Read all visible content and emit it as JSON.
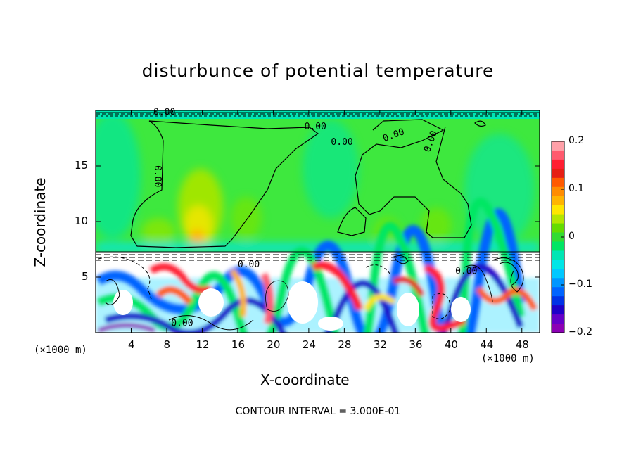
{
  "title": "disturbunce of potential temperature",
  "footer": "CONTOUR INTERVAL = 3.000E-01",
  "chart_data": {
    "type": "heatmap",
    "title": "disturbunce of potential temperature",
    "xlabel": "X-coordinate",
    "ylabel": "Z-coordinate",
    "x_unit": "(×1000 m)",
    "xlim": [
      0,
      50
    ],
    "ylim": [
      0,
      20
    ],
    "x_ticks": [
      4,
      8,
      12,
      16,
      20,
      24,
      28,
      32,
      36,
      40,
      44,
      48
    ],
    "y_ticks": [
      5,
      10,
      15
    ],
    "colorbar": {
      "range": [
        -0.2,
        0.2
      ],
      "tick_labels": [
        "0.2",
        "0.1",
        "0",
        "−0.1",
        "−0.2"
      ],
      "tick_values": [
        0.2,
        0.1,
        0,
        -0.1,
        -0.2
      ],
      "colors": [
        "#ffa0a8",
        "#ff5a6e",
        "#ff1e32",
        "#e61e14",
        "#ff5a00",
        "#ff8c00",
        "#ffb400",
        "#ffe600",
        "#b4e600",
        "#64dc00",
        "#32dc32",
        "#00e664",
        "#00e6b4",
        "#00e6e6",
        "#00c8ff",
        "#0096ff",
        "#0064ff",
        "#0032e6",
        "#1e00c8",
        "#6400c8",
        "#8c00b4"
      ]
    },
    "contour_labels": [
      "0.00",
      "0.00",
      "0.00",
      "0.00",
      "0.00",
      "0.00",
      "0.00",
      "0.00"
    ],
    "contour_interval": "3.000E-01",
    "grid": false
  }
}
